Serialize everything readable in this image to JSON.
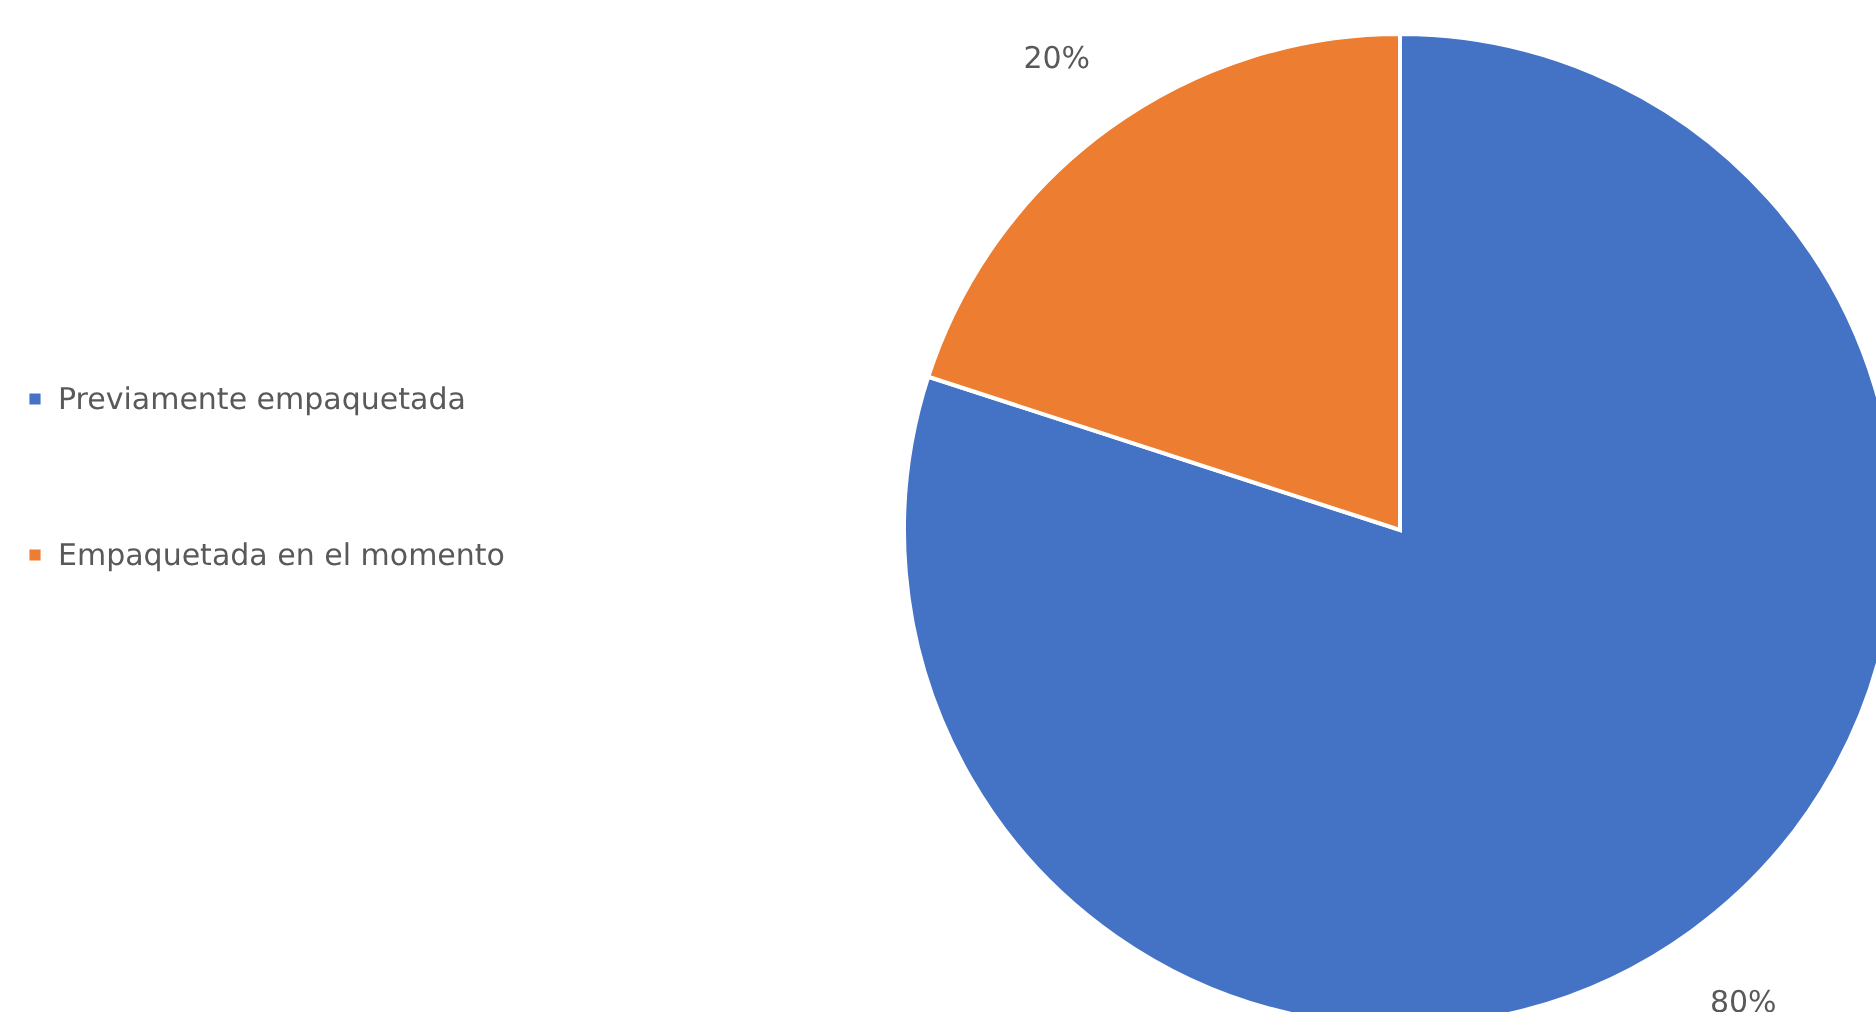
{
  "chart_data": {
    "type": "pie",
    "categories": [
      "Previamente empaquetada",
      "Empaquetada en el momento"
    ],
    "values": [
      80,
      20
    ],
    "colors": [
      "#4472c4",
      "#ed7d31"
    ],
    "value_labels": [
      "80%",
      "20%"
    ],
    "legend": "left"
  }
}
